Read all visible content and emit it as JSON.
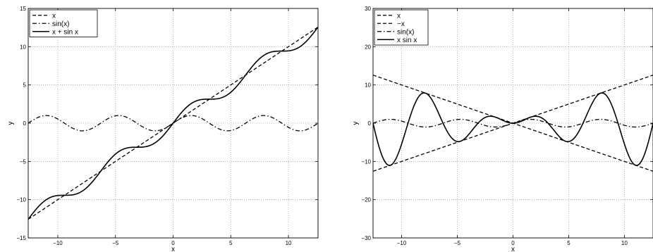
{
  "chart_data": [
    {
      "type": "line",
      "xlabel": "x",
      "ylabel": "y",
      "xlim": [
        -12.566,
        12.566
      ],
      "ylim": [
        -15,
        15
      ],
      "xticks": [
        -10,
        -5,
        0,
        5,
        10
      ],
      "xtick_labels": [
        "−10",
        "−5",
        "0",
        "5",
        "10"
      ],
      "yticks": [
        -15,
        -10,
        -5,
        0,
        5,
        10,
        15
      ],
      "ytick_labels": [
        "−15",
        "−10",
        "−5",
        "0",
        "5",
        "10",
        "15"
      ],
      "grid": true,
      "legend_position": "top-left",
      "series": [
        {
          "name": "x",
          "style": "dashed",
          "color": "#000000",
          "x": [
            -12.566,
            0,
            12.566
          ],
          "y": [
            -12.566,
            0,
            12.566
          ]
        },
        {
          "name": "sin(x)",
          "style": "dashdot",
          "color": "#000000",
          "x": [
            -12.566,
            -10.996,
            -9.425,
            -7.854,
            -6.283,
            -4.712,
            -3.142,
            -1.571,
            0,
            1.571,
            3.142,
            4.712,
            6.283,
            7.854,
            9.425,
            10.996,
            12.566
          ],
          "y": [
            0,
            1,
            0,
            -1,
            0,
            1,
            0,
            -1,
            0,
            1,
            0,
            -1,
            0,
            1,
            0,
            -1,
            0
          ]
        },
        {
          "name": "x + sin x",
          "style": "solid",
          "color": "#000000",
          "x": [
            -12.566,
            -10.996,
            -9.425,
            -7.854,
            -6.283,
            -4.712,
            -3.142,
            -1.571,
            0,
            1.571,
            3.142,
            4.712,
            6.283,
            7.854,
            9.425,
            10.996,
            12.566
          ],
          "y": [
            -12.566,
            -9.996,
            -9.425,
            -8.854,
            -6.283,
            -3.712,
            -3.142,
            -2.571,
            0,
            2.571,
            3.142,
            3.712,
            6.283,
            8.854,
            9.425,
            9.996,
            12.566
          ]
        }
      ]
    },
    {
      "type": "line",
      "xlabel": "x",
      "ylabel": "y",
      "xlim": [
        -12.566,
        12.566
      ],
      "ylim": [
        -30,
        30
      ],
      "xticks": [
        -10,
        -5,
        0,
        5,
        10
      ],
      "xtick_labels": [
        "−10",
        "−5",
        "0",
        "5",
        "10"
      ],
      "yticks": [
        -30,
        -20,
        -10,
        0,
        10,
        20,
        30
      ],
      "ytick_labels": [
        "−30",
        "−20",
        "−10",
        "0",
        "10",
        "20",
        "30"
      ],
      "grid": true,
      "legend_position": "top-left",
      "series": [
        {
          "name": "x",
          "style": "dashed",
          "color": "#000000",
          "x": [
            -12.566,
            0,
            12.566
          ],
          "y": [
            -12.566,
            0,
            12.566
          ]
        },
        {
          "name": "−x",
          "style": "dashed",
          "color": "#000000",
          "x": [
            -12.566,
            0,
            12.566
          ],
          "y": [
            12.566,
            0,
            -12.566
          ]
        },
        {
          "name": "sin(x)",
          "style": "dashdot",
          "color": "#000000",
          "x": [
            -12.566,
            -10.996,
            -9.425,
            -7.854,
            -6.283,
            -4.712,
            -3.142,
            -1.571,
            0,
            1.571,
            3.142,
            4.712,
            6.283,
            7.854,
            9.425,
            10.996,
            12.566
          ],
          "y": [
            0,
            1,
            0,
            -1,
            0,
            1,
            0,
            -1,
            0,
            1,
            0,
            -1,
            0,
            1,
            0,
            -1,
            0
          ]
        },
        {
          "name": "x sin x",
          "style": "solid",
          "color": "#000000",
          "x": [
            -12.566,
            -11.086,
            -9.425,
            -7.979,
            -6.283,
            -4.913,
            -3.142,
            -2.029,
            0,
            2.029,
            3.142,
            4.913,
            6.283,
            7.979,
            9.425,
            11.086,
            12.566
          ],
          "y": [
            0,
            -11.04,
            0,
            7.92,
            0,
            -4.81,
            0,
            1.82,
            0,
            1.82,
            0,
            -4.81,
            0,
            7.92,
            0,
            -11.04,
            0
          ]
        }
      ]
    }
  ]
}
